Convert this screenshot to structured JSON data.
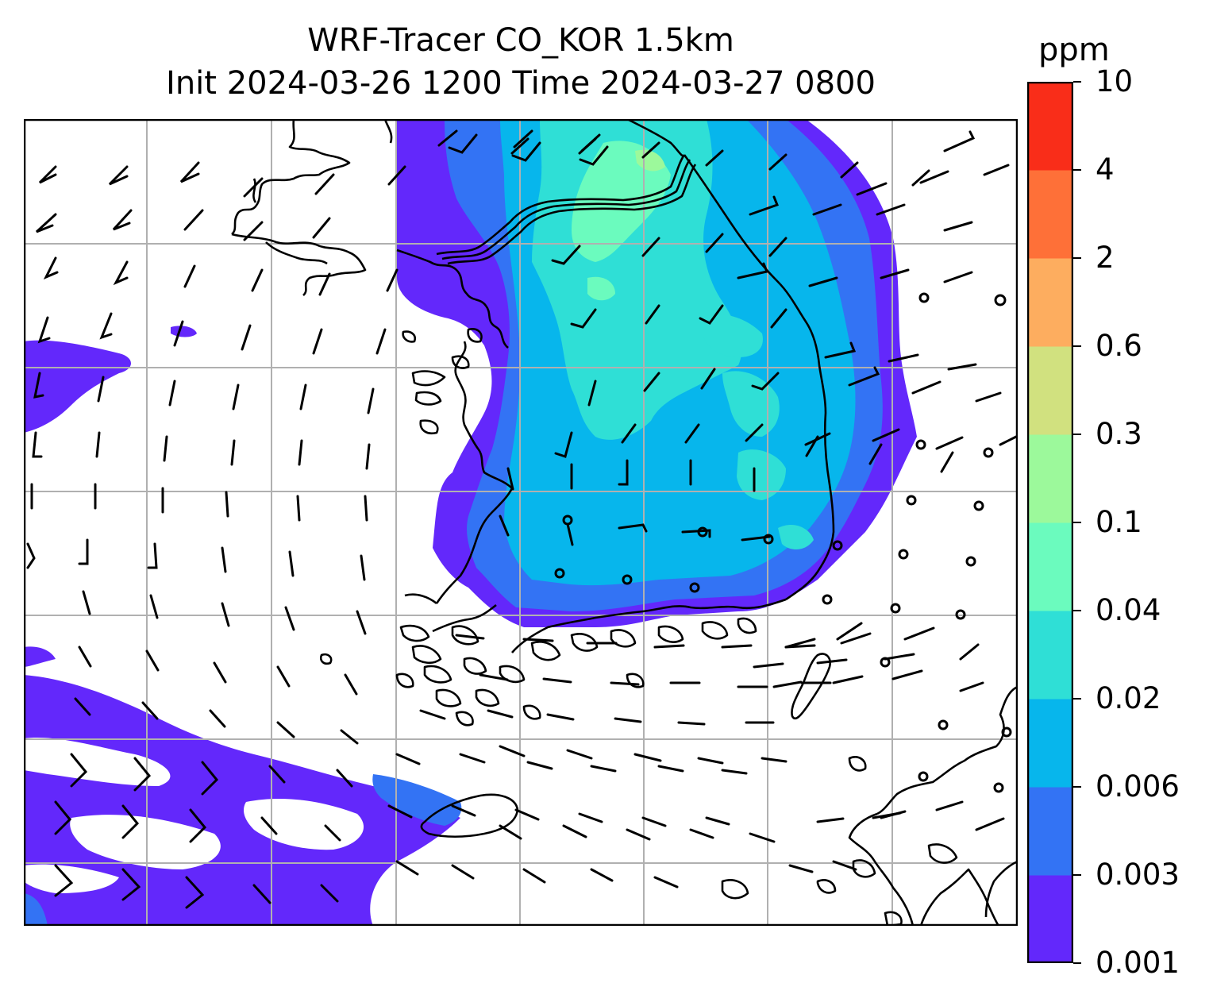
{
  "title": {
    "line1": "WRF-Tracer CO_KOR 1.5km",
    "line2": "Init 2024-03-26 1200 Time 2024-03-27 0800"
  },
  "colorbar": {
    "unit": "ppm",
    "levels": [
      "0.001",
      "0.003",
      "0.006",
      "0.02",
      "0.04",
      "0.1",
      "0.3",
      "0.6",
      "2",
      "4",
      "10"
    ],
    "colors": [
      "#6328fb",
      "#3373f4",
      "#07b6ec",
      "#2fdfd6",
      "#6bfbbe",
      "#9cf99b",
      "#d1e17f",
      "#fdad5f",
      "#fe7038",
      "#f92d19"
    ]
  },
  "map": {
    "region": "Korean Peninsula",
    "gridlines": true,
    "land_outline_color": "#000000",
    "gridline_color": "#b0b0b0",
    "wind_barbs": true,
    "calm_markers": true
  }
}
